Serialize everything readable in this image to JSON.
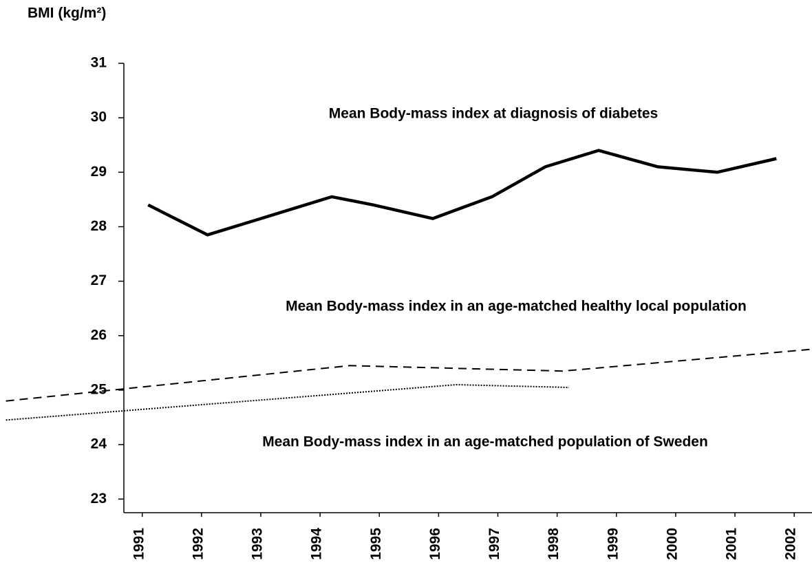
{
  "chart_data": {
    "type": "line",
    "title": "BMI (kg/m²)",
    "xlim": [
      1988.6,
      2002.3
    ],
    "ylim": [
      22.75,
      31
    ],
    "xticks": [
      1991,
      1992,
      1993,
      1994,
      1995,
      1996,
      1997,
      1998,
      1999,
      2000,
      2001,
      2002
    ],
    "yticks": [
      23,
      24,
      25,
      26,
      27,
      28,
      29,
      30,
      31
    ],
    "grid": false,
    "series": [
      {
        "name": "Mean Body-mass index at diagnosis of diabetes",
        "color": "#000000",
        "style": "solid",
        "x": [
          1991.1,
          1992.1,
          1993,
          1994.2,
          1994.9,
          1995.9,
          1996.9,
          1997.8,
          1998.7,
          1999.7,
          2000.7,
          2001.7
        ],
        "values": [
          28.4,
          27.85,
          28.15,
          28.55,
          28.4,
          28.15,
          28.55,
          29.1,
          29.4,
          29.1,
          29.0,
          29.25
        ]
      },
      {
        "name": "Mean Body-mass index in an age-matched healthy local population",
        "color": "#000000",
        "style": "dashed",
        "x": [
          1988.7,
          1994.5,
          1998.1,
          2002.3
        ],
        "values": [
          24.8,
          25.45,
          25.35,
          25.75
        ]
      },
      {
        "name": "Mean Body-mass index in an age-matched population of Sweden",
        "color": "#000000",
        "style": "dotted",
        "x": [
          1988.7,
          1996.3,
          1998.2
        ],
        "values": [
          24.45,
          25.1,
          25.05
        ]
      }
    ]
  }
}
